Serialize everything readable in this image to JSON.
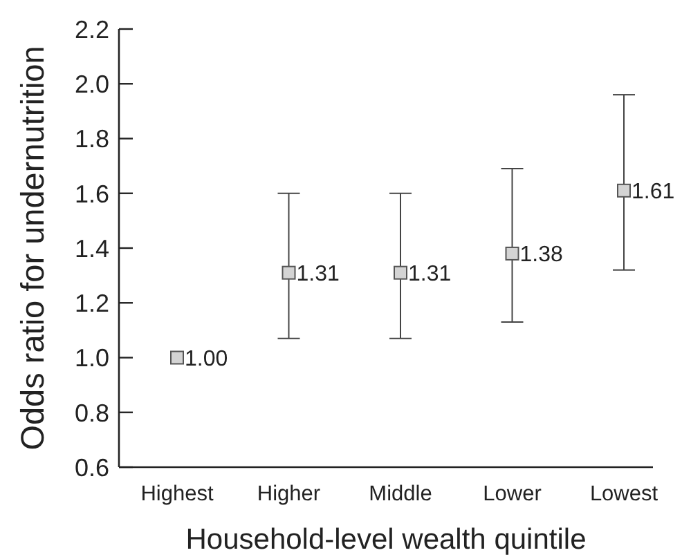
{
  "chart_data": {
    "type": "scatter",
    "xlabel": "Household-level wealth quintile",
    "ylabel": "Odds ratio for undernutrition",
    "categories": [
      "Highest",
      "Higher",
      "Middle",
      "Lower",
      "Lowest"
    ],
    "values": [
      1.0,
      1.31,
      1.31,
      1.38,
      1.61
    ],
    "value_labels": [
      "1.00",
      "1.31",
      "1.31",
      "1.38",
      "1.61"
    ],
    "errors": [
      null,
      [
        1.07,
        1.6
      ],
      [
        1.07,
        1.6
      ],
      [
        1.13,
        1.69
      ],
      [
        1.32,
        1.96
      ]
    ],
    "color": "#d4d4d4",
    "marker": "square",
    "ylim": [
      0.6,
      2.2
    ],
    "yticks": [
      0.6,
      0.8,
      {
        "value": 1,
        "label": "1.0"
      },
      1.2,
      1.4,
      1.6,
      1.8,
      {
        "value": 2,
        "label": "2.0"
      },
      2.2
    ]
  }
}
